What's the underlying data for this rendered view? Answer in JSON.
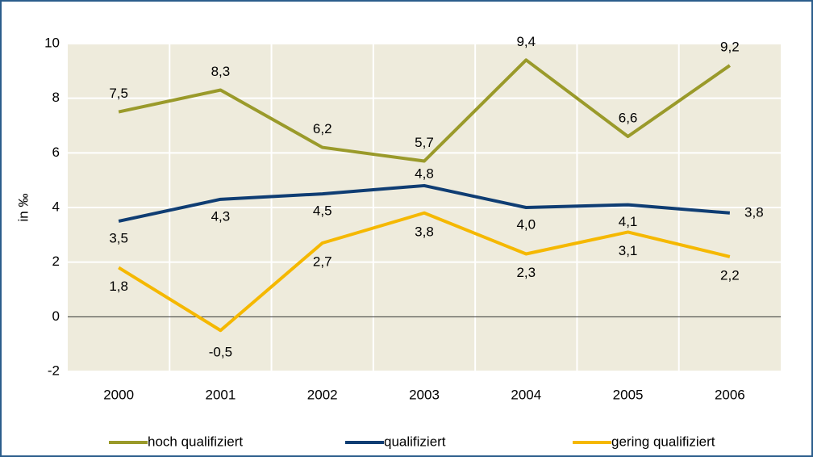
{
  "chart_data": {
    "type": "line",
    "categories": [
      "2000",
      "2001",
      "2002",
      "2003",
      "2004",
      "2005",
      "2006"
    ],
    "y_label": "in ‰",
    "series": [
      {
        "name": "hoch qualifiziert",
        "color": "#9a9a2a",
        "values": [
          7.5,
          8.3,
          6.2,
          5.7,
          9.4,
          6.6,
          9.2
        ],
        "value_labels": [
          "7,5",
          "8,3",
          "6,2",
          "5,7",
          "9,4",
          "6,6",
          "9,2"
        ]
      },
      {
        "name": "qualifiziert",
        "color": "#0f3d73",
        "values": [
          3.5,
          4.3,
          4.5,
          4.8,
          4.0,
          4.1,
          3.8
        ],
        "value_labels": [
          "3,5",
          "4,3",
          "4,5",
          "4,8",
          "4,0",
          "4,1",
          "3,8"
        ]
      },
      {
        "name": "gering qualifiziert",
        "color": "#f5b800",
        "values": [
          1.8,
          -0.5,
          2.7,
          3.8,
          2.3,
          3.1,
          2.2
        ],
        "value_labels": [
          "1,8",
          "-0,5",
          "2,7",
          "3,8",
          "2,3",
          "3,1",
          "2,2"
        ]
      }
    ],
    "ylim": [
      -2,
      10
    ],
    "yticks": [
      -2,
      0,
      2,
      4,
      6,
      8,
      10
    ],
    "grid": true,
    "legend": "bottom"
  }
}
